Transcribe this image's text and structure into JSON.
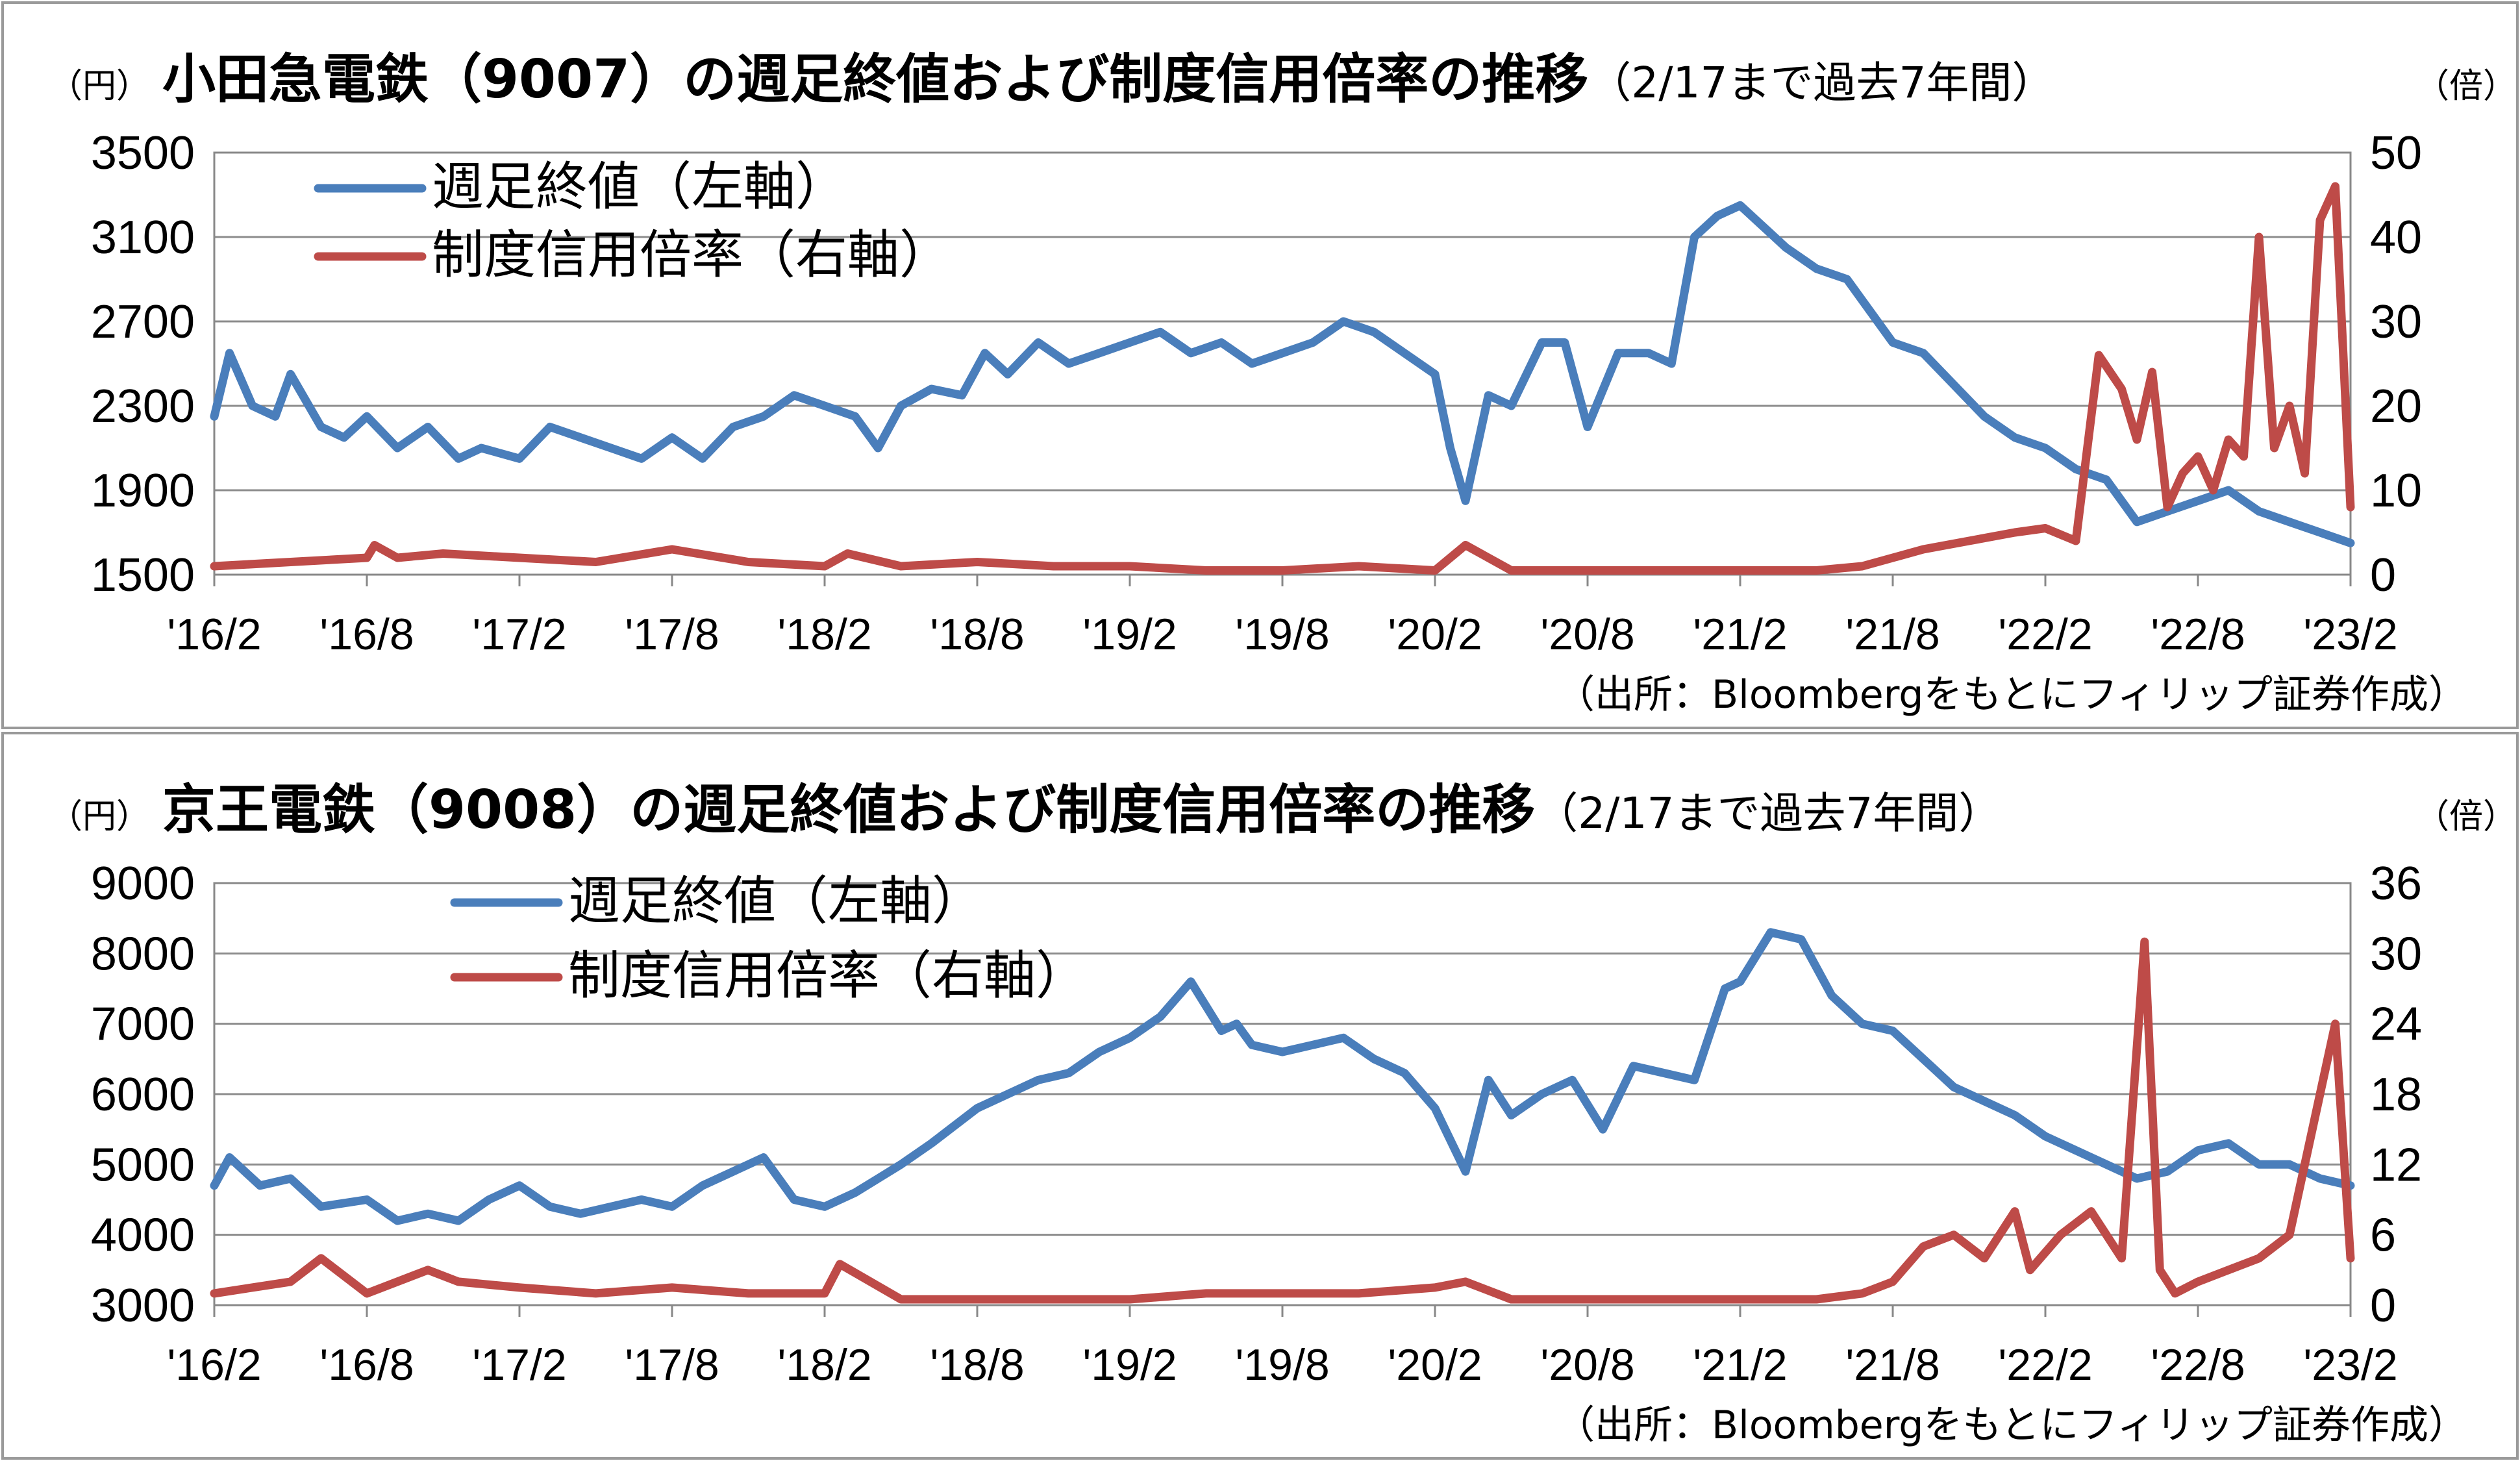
{
  "charts": [
    {
      "title": "小田急電鉄（9007）の週足終値および制度信用倍率の推移",
      "title_sub": "（2/17まで過去7年間）",
      "left_unit": "（円）",
      "right_unit": "（倍）",
      "legend": [
        "週足終値（左軸）",
        "制度信用倍率（右軸）"
      ],
      "source": "（出所：Bloombergをもとにフィリップ証券作成）"
    },
    {
      "title": "京王電鉄（9008）の週足終値および制度信用倍率の推移",
      "title_sub": "（2/17まで過去7年間）",
      "left_unit": "（円）",
      "right_unit": "（倍）",
      "legend": [
        "週足終値（左軸）",
        "制度信用倍率（右軸）"
      ],
      "source": "（出所：Bloombergをもとにフィリップ証券作成）"
    }
  ],
  "chart_data": [
    {
      "type": "line",
      "title": "小田急電鉄（9007）の週足終値および制度信用倍率の推移（2/17まで過去7年間）",
      "x_ticks": [
        "'16/2",
        "'16/8",
        "'17/2",
        "'17/8",
        "'18/2",
        "'18/8",
        "'19/2",
        "'19/8",
        "'20/2",
        "'20/8",
        "'21/2",
        "'21/8",
        "'22/2",
        "'22/8",
        "'23/2"
      ],
      "y_left": {
        "unit": "（円）",
        "min": 1500,
        "max": 3500,
        "ticks": [
          1500,
          1900,
          2300,
          2700,
          3100,
          3500
        ]
      },
      "y_right": {
        "unit": "（倍）",
        "min": 0,
        "max": 50,
        "ticks": [
          0,
          10,
          20,
          30,
          40,
          50
        ]
      },
      "grid": true,
      "legend_position": "top-left",
      "series": [
        {
          "name": "週足終値（左軸）",
          "axis": "left",
          "color": "#4a7ebb",
          "x": [
            0,
            0.1,
            0.25,
            0.4,
            0.5,
            0.7,
            0.85,
            1,
            1.2,
            1.4,
            1.6,
            1.75,
            2,
            2.2,
            2.4,
            2.6,
            2.8,
            3,
            3.2,
            3.4,
            3.6,
            3.8,
            4,
            4.2,
            4.35,
            4.5,
            4.7,
            4.9,
            5.05,
            5.2,
            5.4,
            5.6,
            5.8,
            6,
            6.2,
            6.4,
            6.6,
            6.8,
            7,
            7.2,
            7.4,
            7.6,
            7.8,
            8,
            8.1,
            8.2,
            8.35,
            8.5,
            8.7,
            8.85,
            9,
            9.2,
            9.4,
            9.55,
            9.7,
            9.85,
            10,
            10.15,
            10.3,
            10.5,
            10.7,
            10.85,
            11,
            11.2,
            11.4,
            11.6,
            11.8,
            12,
            12.2,
            12.4,
            12.6,
            12.8,
            13,
            13.2,
            13.4,
            13.6,
            13.8,
            14
          ],
          "y": [
            2250,
            2550,
            2300,
            2250,
            2450,
            2200,
            2150,
            2250,
            2100,
            2200,
            2050,
            2100,
            2050,
            2200,
            2150,
            2100,
            2050,
            2150,
            2050,
            2200,
            2250,
            2350,
            2300,
            2250,
            2100,
            2300,
            2380,
            2350,
            2550,
            2450,
            2600,
            2500,
            2550,
            2600,
            2650,
            2550,
            2600,
            2500,
            2550,
            2600,
            2700,
            2650,
            2550,
            2450,
            2100,
            1850,
            2350,
            2300,
            2600,
            2600,
            2200,
            2550,
            2550,
            2500,
            3100,
            3200,
            3250,
            3150,
            3050,
            2950,
            2900,
            2750,
            2600,
            2550,
            2400,
            2250,
            2150,
            2100,
            2000,
            1950,
            1750,
            1800,
            1850,
            1900,
            1800,
            1750,
            1700,
            1650
          ]
        },
        {
          "name": "制度信用倍率（右軸）",
          "axis": "right",
          "color": "#be4b48",
          "x": [
            0,
            0.5,
            1,
            1.05,
            1.2,
            1.5,
            2,
            2.5,
            3,
            3.5,
            4,
            4.15,
            4.5,
            5,
            5.5,
            6,
            6.5,
            7,
            7.5,
            8,
            8.2,
            8.5,
            9,
            9.5,
            10,
            10.5,
            10.8,
            11,
            11.2,
            11.5,
            11.8,
            12,
            12.2,
            12.35,
            12.5,
            12.6,
            12.7,
            12.8,
            12.9,
            13,
            13.1,
            13.2,
            13.3,
            13.4,
            13.5,
            13.6,
            13.7,
            13.8,
            13.9,
            14
          ],
          "y": [
            1,
            1.5,
            2,
            3.5,
            2,
            2.5,
            2,
            1.5,
            3,
            1.5,
            1,
            2.5,
            1,
            1.5,
            1,
            1,
            0.5,
            0.5,
            1,
            0.5,
            3.5,
            0.5,
            0.5,
            0.5,
            0.5,
            0.5,
            1,
            2,
            3,
            4,
            5,
            5.5,
            4,
            26,
            22,
            16,
            24,
            8,
            12,
            14,
            10,
            16,
            14,
            40,
            15,
            20,
            12,
            42,
            46,
            8
          ]
        }
      ]
    },
    {
      "type": "line",
      "title": "京王電鉄（9008）の週足終値および制度信用倍率の推移（2/17まで過去7年間）",
      "x_ticks": [
        "'16/2",
        "'16/8",
        "'17/2",
        "'17/8",
        "'18/2",
        "'18/8",
        "'19/2",
        "'19/8",
        "'20/2",
        "'20/8",
        "'21/2",
        "'21/8",
        "'22/2",
        "'22/8",
        "'23/2"
      ],
      "y_left": {
        "unit": "（円）",
        "min": 3000,
        "max": 9000,
        "ticks": [
          3000,
          4000,
          5000,
          6000,
          7000,
          8000,
          9000
        ]
      },
      "y_right": {
        "unit": "（倍）",
        "min": 0,
        "max": 36,
        "ticks": [
          0,
          6,
          12,
          18,
          24,
          30,
          36
        ]
      },
      "grid": true,
      "legend_position": "top-left",
      "series": [
        {
          "name": "週足終値（左軸）",
          "axis": "left",
          "color": "#4a7ebb",
          "x": [
            0,
            0.1,
            0.3,
            0.5,
            0.7,
            1,
            1.2,
            1.4,
            1.6,
            1.8,
            2,
            2.2,
            2.4,
            2.6,
            2.8,
            3,
            3.2,
            3.4,
            3.6,
            3.8,
            4,
            4.2,
            4.35,
            4.5,
            4.7,
            5,
            5.2,
            5.4,
            5.6,
            5.8,
            6,
            6.2,
            6.4,
            6.6,
            6.7,
            6.8,
            7,
            7.2,
            7.4,
            7.6,
            7.8,
            8,
            8.2,
            8.35,
            8.5,
            8.7,
            8.9,
            9.1,
            9.3,
            9.5,
            9.7,
            9.9,
            10,
            10.2,
            10.4,
            10.6,
            10.8,
            11,
            11.2,
            11.4,
            11.6,
            11.8,
            12,
            12.2,
            12.4,
            12.6,
            12.8,
            13,
            13.2,
            13.4,
            13.6,
            13.8,
            14
          ],
          "y": [
            4700,
            5100,
            4700,
            4800,
            4400,
            4500,
            4200,
            4300,
            4200,
            4500,
            4700,
            4400,
            4300,
            4400,
            4500,
            4400,
            4700,
            4900,
            5100,
            4500,
            4400,
            4600,
            4800,
            5000,
            5300,
            5800,
            6000,
            6200,
            6300,
            6600,
            6800,
            7100,
            7600,
            6900,
            7000,
            6700,
            6600,
            6700,
            6800,
            6500,
            6300,
            5800,
            4900,
            6200,
            5700,
            6000,
            6200,
            5500,
            6400,
            6300,
            6200,
            7500,
            7600,
            8300,
            8200,
            7400,
            7000,
            6900,
            6500,
            6100,
            5900,
            5700,
            5400,
            5200,
            5000,
            4800,
            4900,
            5200,
            5300,
            5000,
            5000,
            4800,
            4700
          ]
        },
        {
          "name": "制度信用倍率（右軸）",
          "axis": "right",
          "color": "#be4b48",
          "x": [
            0,
            0.5,
            0.7,
            1,
            1.4,
            1.6,
            2,
            2.5,
            3,
            3.5,
            4,
            4.1,
            4.3,
            4.5,
            5,
            5.5,
            6,
            6.5,
            7,
            7.5,
            8,
            8.2,
            8.5,
            9,
            9.5,
            10,
            10.5,
            10.8,
            11,
            11.2,
            11.4,
            11.6,
            11.8,
            11.9,
            12.1,
            12.3,
            12.5,
            12.65,
            12.75,
            12.85,
            13,
            13.2,
            13.4,
            13.6,
            13.7,
            13.8,
            13.9,
            14
          ],
          "y": [
            1,
            2,
            4,
            1,
            3,
            2,
            1.5,
            1,
            1.5,
            1,
            1,
            3.5,
            2,
            0.5,
            0.5,
            0.5,
            0.5,
            1,
            1,
            1,
            1.5,
            2,
            0.5,
            0.5,
            0.5,
            0.5,
            0.5,
            1,
            2,
            5,
            6,
            4,
            8,
            3,
            6,
            8,
            4,
            31,
            3,
            1,
            2,
            3,
            4,
            6,
            12,
            18,
            24,
            4
          ]
        }
      ]
    }
  ]
}
